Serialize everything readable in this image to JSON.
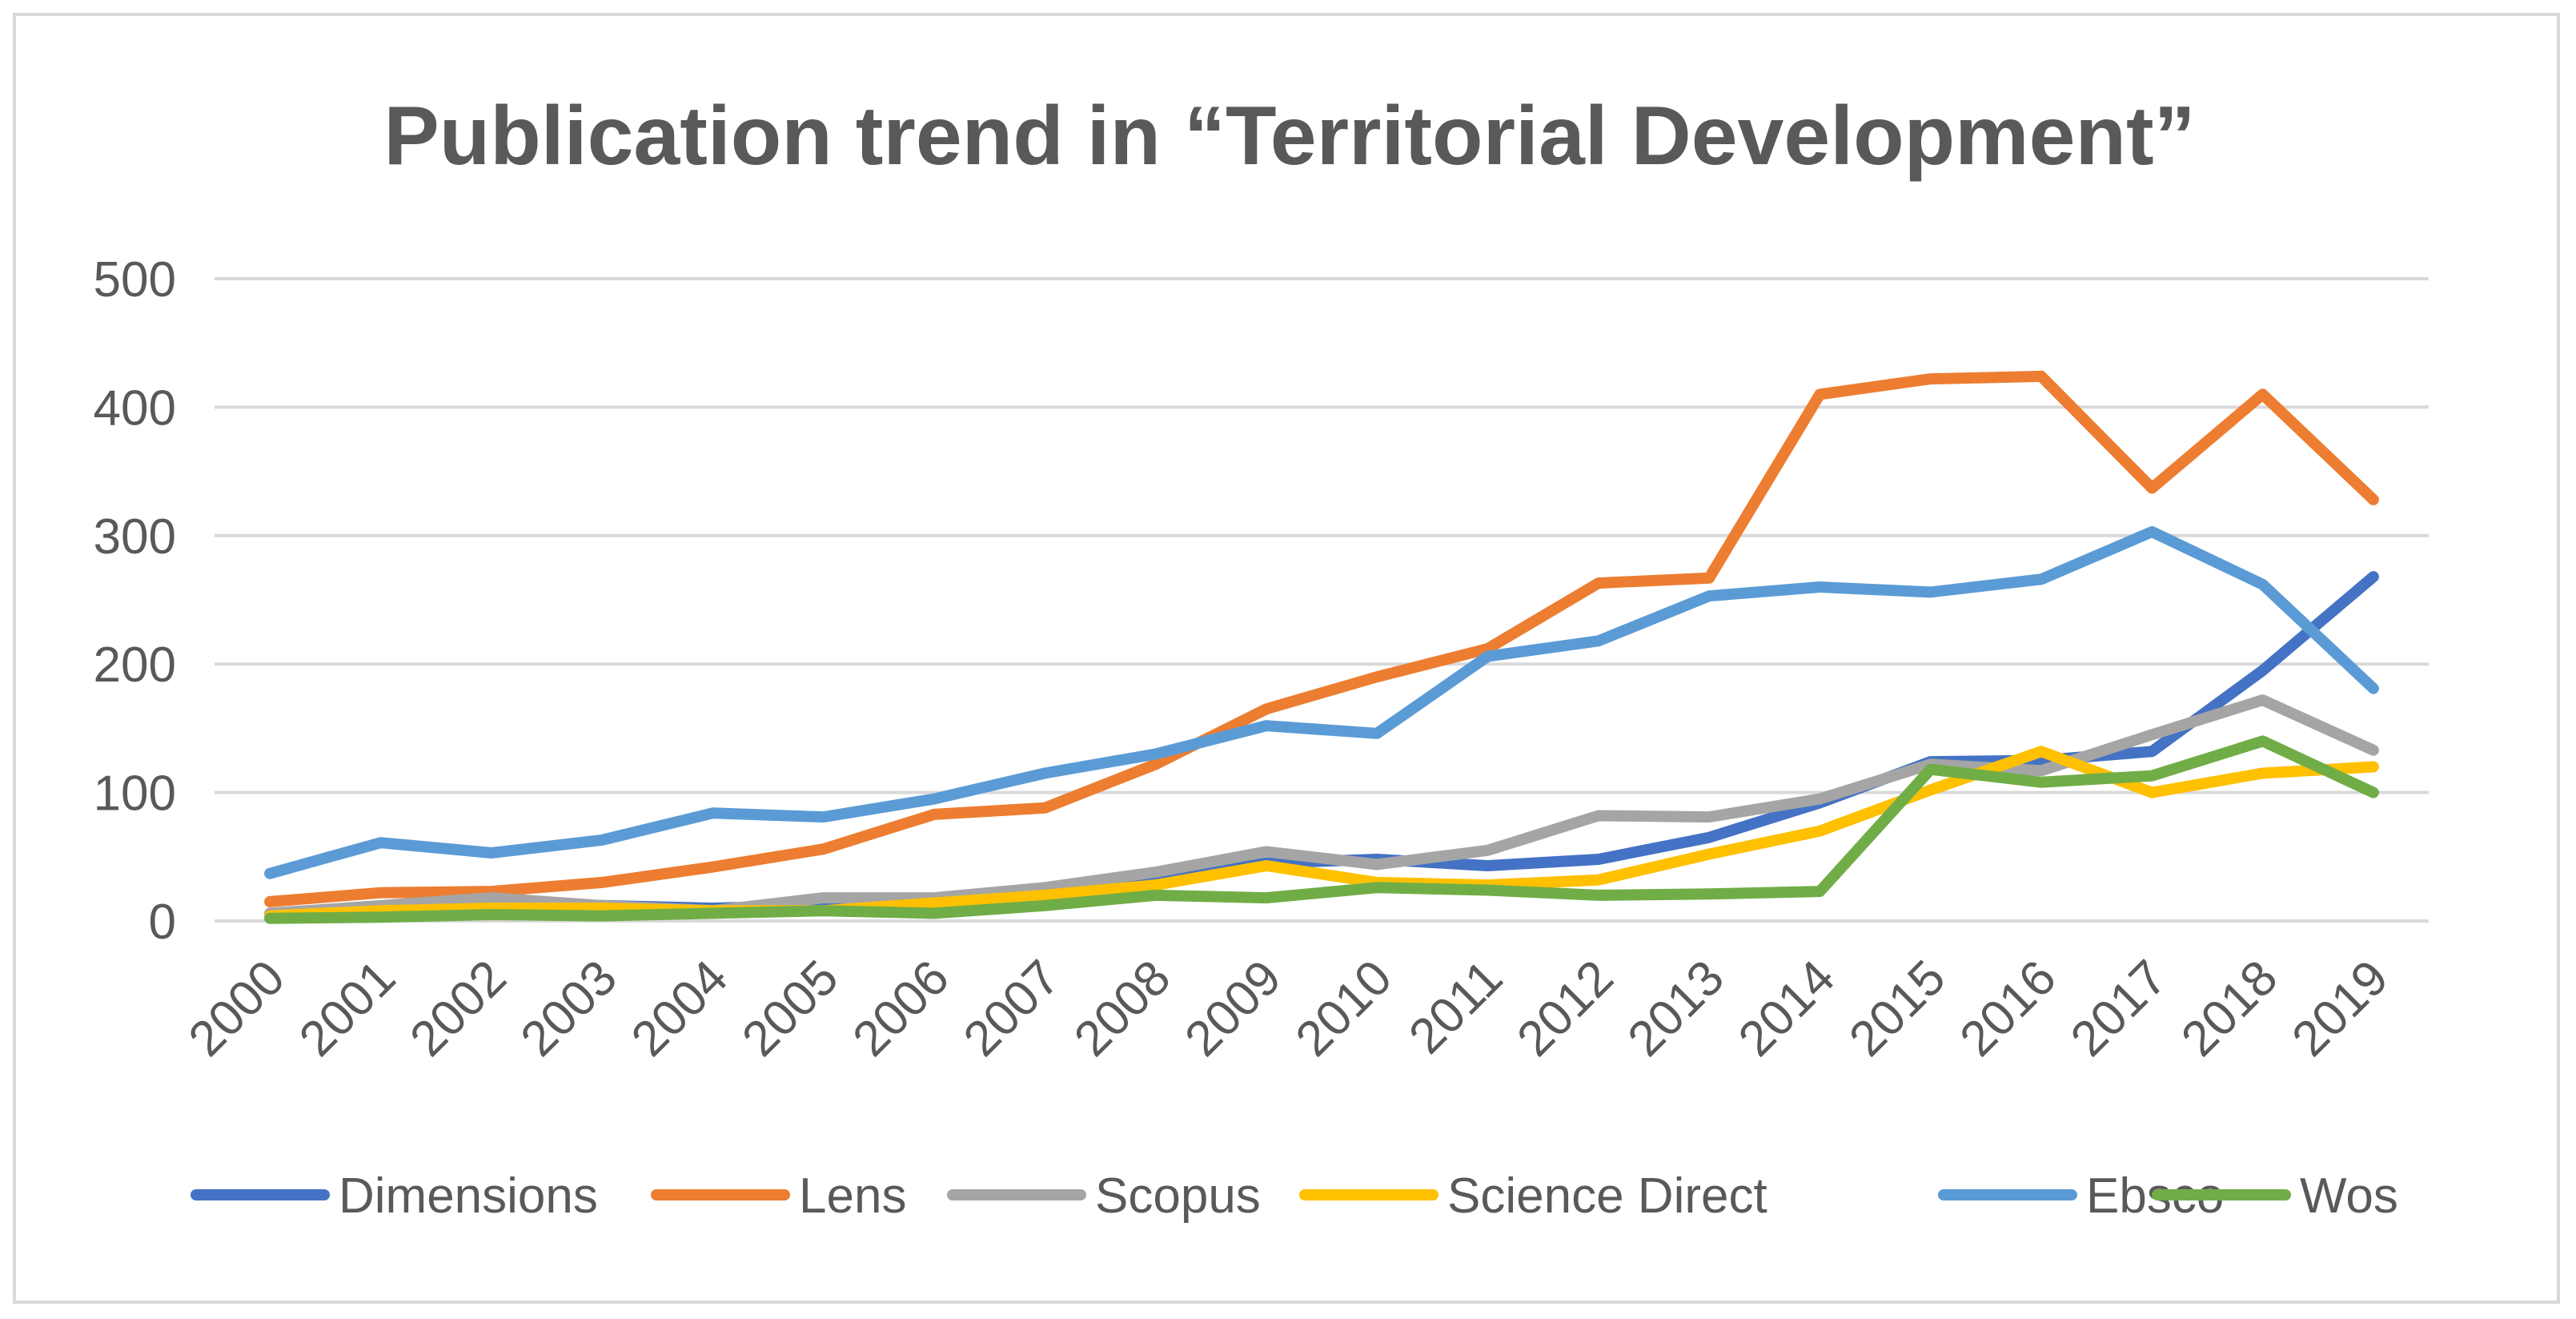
{
  "chart_data": {
    "type": "line",
    "title": "Publication trend in “Territorial Development”",
    "xlabel": "",
    "ylabel": "",
    "ylim": [
      0,
      500
    ],
    "yticks": [
      "0",
      "100",
      "200",
      "300",
      "400",
      "500"
    ],
    "grid": true,
    "legend_position": "bottom",
    "categories": [
      "2000",
      "2001",
      "2002",
      "2003",
      "2004",
      "2005",
      "2006",
      "2007",
      "2008",
      "2009",
      "2010",
      "2011",
      "2012",
      "2013",
      "2014",
      "2015",
      "2016",
      "2017",
      "2018",
      "2019"
    ],
    "series": [
      {
        "name": "Dimensions",
        "color": "#4472c4",
        "values": [
          5,
          8,
          12,
          12,
          10,
          12,
          14,
          20,
          32,
          45,
          48,
          43,
          48,
          65,
          92,
          124,
          125,
          132,
          195,
          268
        ]
      },
      {
        "name": "Lens",
        "color": "#ed7d31",
        "values": [
          15,
          22,
          23,
          30,
          42,
          56,
          83,
          88,
          122,
          165,
          190,
          212,
          263,
          267,
          410,
          422,
          424,
          337,
          410,
          328
        ]
      },
      {
        "name": "Scopus",
        "color": "#a5a5a5",
        "values": [
          6,
          12,
          18,
          12,
          8,
          18,
          18,
          26,
          38,
          54,
          44,
          55,
          82,
          81,
          95,
          122,
          117,
          145,
          172,
          133
        ]
      },
      {
        "name": "Science Direct",
        "color": "#ffc000",
        "values": [
          4,
          8,
          10,
          10,
          8,
          8,
          14,
          20,
          28,
          43,
          30,
          28,
          32,
          52,
          70,
          102,
          132,
          100,
          115,
          120
        ]
      },
      {
        "name": "Ebsco",
        "color": "#5b9bd5",
        "values": [
          37,
          61,
          53,
          63,
          84,
          81,
          95,
          115,
          130,
          152,
          146,
          206,
          218,
          253,
          260,
          256,
          266,
          303,
          262,
          181
        ]
      },
      {
        "name": "Wos",
        "color": "#70ad47",
        "values": [
          2,
          3,
          5,
          4,
          6,
          8,
          6,
          12,
          20,
          18,
          26,
          24,
          20,
          21,
          23,
          118,
          108,
          113,
          140,
          100
        ]
      }
    ]
  }
}
